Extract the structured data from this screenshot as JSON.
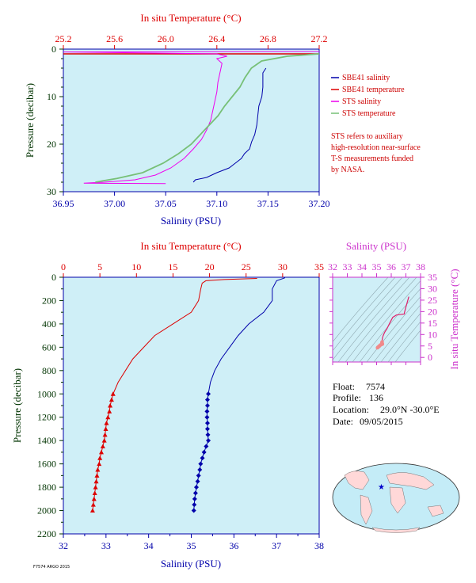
{
  "colors": {
    "temperature": "#dd0000",
    "salinity": "#0000aa",
    "sts_salinity": "#ee00ee",
    "sts_temperature": "#77c077",
    "pressure": "#003300",
    "ts_axis": "#cc33cc",
    "panel_bg": "#cfeff7",
    "note": "#cc0000"
  },
  "top_chart": {
    "top_axis_label": "In situ Temperature (°C)",
    "bottom_axis_label": "Salinity (PSU)",
    "left_axis_label": "Pressure (decibar)",
    "temp_ticks": [
      "25.2",
      "25.6",
      "26.0",
      "26.4",
      "26.8",
      "27.2"
    ],
    "sal_ticks": [
      "36.95",
      "37.00",
      "37.05",
      "37.10",
      "37.15",
      "37.20"
    ],
    "pres_ticks": [
      "0",
      "10",
      "20",
      "30"
    ],
    "legend": [
      {
        "key": "sbe_sal",
        "label": "SBE41 salinity",
        "color": "#0000aa"
      },
      {
        "key": "sbe_temp",
        "label": "SBE41 temperature",
        "color": "#dd0000"
      },
      {
        "key": "sts_sal",
        "label": "STS salinity",
        "color": "#ee00ee"
      },
      {
        "key": "sts_temp",
        "label": "STS temperature",
        "color": "#77c077"
      }
    ],
    "note_lines": [
      "STS refers to auxiliary",
      "high-resolution near-surface",
      "T-S measurements funded",
      "by NASA."
    ]
  },
  "bottom_chart": {
    "top_axis_label": "In situ Temperature (°C)",
    "bottom_axis_label": "Salinity (PSU)",
    "left_axis_label": "Pressure (decibar)",
    "temp_ticks": [
      "0",
      "5",
      "10",
      "15",
      "20",
      "25",
      "30",
      "35"
    ],
    "sal_ticks": [
      "32",
      "33",
      "34",
      "35",
      "36",
      "37",
      "38"
    ],
    "pres_ticks": [
      "0",
      "200",
      "400",
      "600",
      "800",
      "1000",
      "1200",
      "1400",
      "1600",
      "1800",
      "2000",
      "2200"
    ]
  },
  "ts_inset": {
    "top_axis_label": "Salinity (PSU)",
    "right_axis_label": "In situ Temperature (°C)",
    "sal_ticks": [
      "32",
      "33",
      "34",
      "35",
      "36",
      "37",
      "38"
    ],
    "temp_ticks": [
      "0",
      "5",
      "10",
      "15",
      "20",
      "25",
      "30",
      "35"
    ]
  },
  "info": {
    "float_label": "Float:",
    "float_value": "7574",
    "profile_label": "Profile:",
    "profile_value": "136",
    "location_label": "Location:",
    "location_value": "29.0°N  -30.0°E",
    "date_label": "Date:",
    "date_value": "09/05/2015"
  },
  "footer_text": "F7574 ARGO 2015",
  "chart_data": [
    {
      "type": "line",
      "title": "",
      "ylabel": "Pressure (decibar)",
      "xlabel": "Salinity (PSU)",
      "x2label": "In situ Temperature (°C)",
      "ylim": [
        30,
        0
      ],
      "xlim": [
        36.95,
        37.2
      ],
      "x2lim": [
        25.2,
        27.2
      ],
      "series": [
        {
          "name": "SBE41 salinity",
          "axis": "salinity",
          "points": [
            [
              37.148,
              4
            ],
            [
              37.145,
              5
            ],
            [
              37.145,
              8
            ],
            [
              37.144,
              10
            ],
            [
              37.141,
              12
            ],
            [
              37.14,
              14
            ],
            [
              37.139,
              16
            ],
            [
              37.137,
              18
            ],
            [
              37.134,
              19.5
            ],
            [
              37.132,
              21
            ],
            [
              37.127,
              22
            ],
            [
              37.124,
              23
            ],
            [
              37.118,
              24
            ],
            [
              37.112,
              25
            ],
            [
              37.1,
              26
            ],
            [
              37.09,
              27
            ],
            [
              37.079,
              27.5
            ],
            [
              37.077,
              28
            ]
          ]
        },
        {
          "name": "SBE41 temperature",
          "axis": "temperature",
          "points": [
            [
              26.7,
              1
            ]
          ]
        },
        {
          "name": "STS salinity",
          "axis": "salinity",
          "points": [
            [
              37.2,
              0.5
            ],
            [
              36.95,
              0.6
            ],
            [
              37.1,
              1
            ],
            [
              37.11,
              1.5
            ],
            [
              37.1,
              2
            ],
            [
              37.105,
              3
            ],
            [
              37.103,
              5
            ],
            [
              37.101,
              7
            ],
            [
              37.1,
              9
            ],
            [
              37.098,
              11
            ],
            [
              37.096,
              13
            ],
            [
              37.094,
              15
            ],
            [
              37.09,
              17
            ],
            [
              37.085,
              19
            ],
            [
              37.077,
              21
            ],
            [
              37.068,
              23
            ],
            [
              37.055,
              25
            ],
            [
              37.04,
              26.5
            ],
            [
              37.02,
              27.5
            ],
            [
              36.99,
              28
            ],
            [
              36.97,
              28.2
            ],
            [
              37.05,
              28.3
            ]
          ]
        },
        {
          "name": "STS temperature",
          "axis": "temperature",
          "points": [
            [
              27.2,
              1
            ],
            [
              26.95,
              1.5
            ],
            [
              26.75,
              2.5
            ],
            [
              26.67,
              4
            ],
            [
              26.62,
              6
            ],
            [
              26.58,
              8
            ],
            [
              26.52,
              10
            ],
            [
              26.46,
              12
            ],
            [
              26.41,
              14
            ],
            [
              26.34,
              16
            ],
            [
              26.27,
              18
            ],
            [
              26.2,
              20
            ],
            [
              26.1,
              22
            ],
            [
              25.98,
              24
            ],
            [
              25.82,
              26
            ],
            [
              25.62,
              27.2
            ],
            [
              25.45,
              28
            ]
          ]
        }
      ]
    },
    {
      "type": "line",
      "title": "",
      "ylabel": "Pressure (decibar)",
      "xlabel": "Salinity (PSU)",
      "x2label": "In situ Temperature (°C)",
      "ylim": [
        2200,
        0
      ],
      "xlim": [
        32,
        38
      ],
      "x2lim": [
        0,
        35
      ],
      "series": [
        {
          "name": "Temperature",
          "axis": "temperature",
          "marker": "triangle",
          "points": [
            [
              26.5,
              10
            ],
            [
              22,
              20
            ],
            [
              19.5,
              30
            ],
            [
              19,
              50
            ],
            [
              18.8,
              100
            ],
            [
              18.5,
              200
            ],
            [
              17.5,
              300
            ],
            [
              15,
              400
            ],
            [
              12.5,
              500
            ],
            [
              11,
              600
            ],
            [
              9.5,
              700
            ],
            [
              8.5,
              800
            ],
            [
              7.5,
              900
            ],
            [
              6.8,
              1000
            ],
            [
              6.6,
              1050
            ],
            [
              6.4,
              1100
            ],
            [
              6.3,
              1150
            ],
            [
              6.1,
              1200
            ],
            [
              5.9,
              1250
            ],
            [
              5.8,
              1300
            ],
            [
              5.7,
              1350
            ],
            [
              5.6,
              1400
            ],
            [
              5.4,
              1450
            ],
            [
              5.2,
              1500
            ],
            [
              5.0,
              1550
            ],
            [
              4.9,
              1600
            ],
            [
              4.7,
              1650
            ],
            [
              4.6,
              1700
            ],
            [
              4.5,
              1750
            ],
            [
              4.4,
              1800
            ],
            [
              4.3,
              1850
            ],
            [
              4.2,
              1900
            ],
            [
              4.1,
              1950
            ],
            [
              4.0,
              2000
            ]
          ]
        },
        {
          "name": "Salinity",
          "axis": "salinity",
          "marker": "diamond",
          "points": [
            [
              37.2,
              5
            ],
            [
              37.0,
              30
            ],
            [
              36.9,
              100
            ],
            [
              36.9,
              200
            ],
            [
              36.7,
              300
            ],
            [
              36.35,
              400
            ],
            [
              36.1,
              500
            ],
            [
              35.9,
              600
            ],
            [
              35.7,
              700
            ],
            [
              35.55,
              800
            ],
            [
              35.45,
              900
            ],
            [
              35.4,
              1000
            ],
            [
              35.38,
              1050
            ],
            [
              35.38,
              1100
            ],
            [
              35.37,
              1150
            ],
            [
              35.37,
              1200
            ],
            [
              35.38,
              1250
            ],
            [
              35.38,
              1300
            ],
            [
              35.39,
              1350
            ],
            [
              35.4,
              1400
            ],
            [
              35.35,
              1450
            ],
            [
              35.3,
              1500
            ],
            [
              35.26,
              1550
            ],
            [
              35.22,
              1600
            ],
            [
              35.2,
              1650
            ],
            [
              35.17,
              1700
            ],
            [
              35.15,
              1750
            ],
            [
              35.12,
              1800
            ],
            [
              35.1,
              1850
            ],
            [
              35.08,
              1900
            ],
            [
              35.07,
              1950
            ],
            [
              35.06,
              2000
            ]
          ]
        }
      ]
    }
  ]
}
